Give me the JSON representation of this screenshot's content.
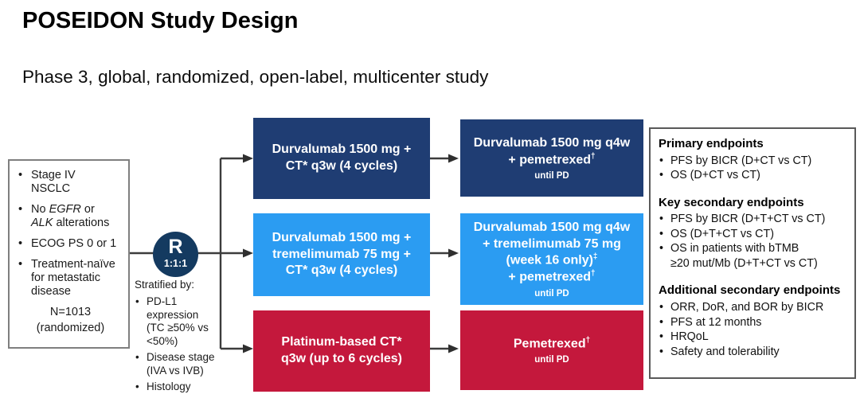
{
  "title": "POSEIDON Study Design",
  "subtitle": "Phase 3, global, randomized, open-label, multicenter study",
  "colors": {
    "navy": "#1f3d73",
    "light_blue": "#2b9cf2",
    "red": "#c4183c",
    "circle_navy": "#143a60",
    "connector_gray": "#3c3c3c"
  },
  "eligibility": {
    "items": [
      [
        "Stage IV",
        "NSCLC"
      ],
      [
        "No *EGFR* or",
        "*ALK* alterations"
      ],
      [
        "ECOG PS 0 or 1"
      ],
      [
        "Treatment-naïve",
        "for metastatic",
        "disease"
      ]
    ],
    "n": "N=1013",
    "n_note": "(randomized)"
  },
  "randomization": {
    "symbol": "R",
    "ratio": "1:1:1",
    "stratified_label": "Stratified by:",
    "factors": [
      [
        "PD-L1",
        "expression",
        "(TC ≥50% vs",
        "<50%)"
      ],
      [
        "Disease stage",
        "(IVA vs IVB)"
      ],
      [
        "Histology"
      ]
    ]
  },
  "arms": {
    "induction": [
      {
        "lines": [
          "Durvalumab 1500 mg +",
          "CT* q3w (4 cycles)"
        ]
      },
      {
        "lines": [
          "Durvalumab 1500 mg +",
          "tremelimumab 75 mg +",
          "CT* q3w (4 cycles)"
        ]
      },
      {
        "lines": [
          "Platinum-based CT*",
          "q3w (up to 6 cycles)"
        ]
      }
    ],
    "maintenance": [
      {
        "lines": [
          "Durvalumab 1500 mg q4w",
          "+ pemetrexed†"
        ],
        "note": "until PD"
      },
      {
        "lines": [
          "Durvalumab 1500 mg q4w",
          "+ tremelimumab 75 mg",
          "(week 16 only)‡",
          "+ pemetrexed†"
        ],
        "note": "until PD"
      },
      {
        "lines": [
          "Pemetrexed†"
        ],
        "note": "until PD"
      }
    ]
  },
  "endpoints": {
    "sections": [
      {
        "heading": "Primary endpoints",
        "items": [
          [
            "PFS by BICR (D+CT vs CT)"
          ],
          [
            "OS (D+CT vs CT)"
          ]
        ]
      },
      {
        "heading": "Key secondary endpoints",
        "items": [
          [
            "PFS by BICR (D+T+CT vs CT)"
          ],
          [
            "OS (D+T+CT vs CT)"
          ],
          [
            "OS in patients with bTMB",
            "≥20 mut/Mb (D+T+CT vs CT)"
          ]
        ]
      },
      {
        "heading": "Additional secondary endpoints",
        "items": [
          [
            "ORR, DoR, and BOR by BICR"
          ],
          [
            "PFS at 12 months"
          ],
          [
            "HRQoL"
          ],
          [
            "Safety and tolerability"
          ]
        ]
      }
    ]
  }
}
